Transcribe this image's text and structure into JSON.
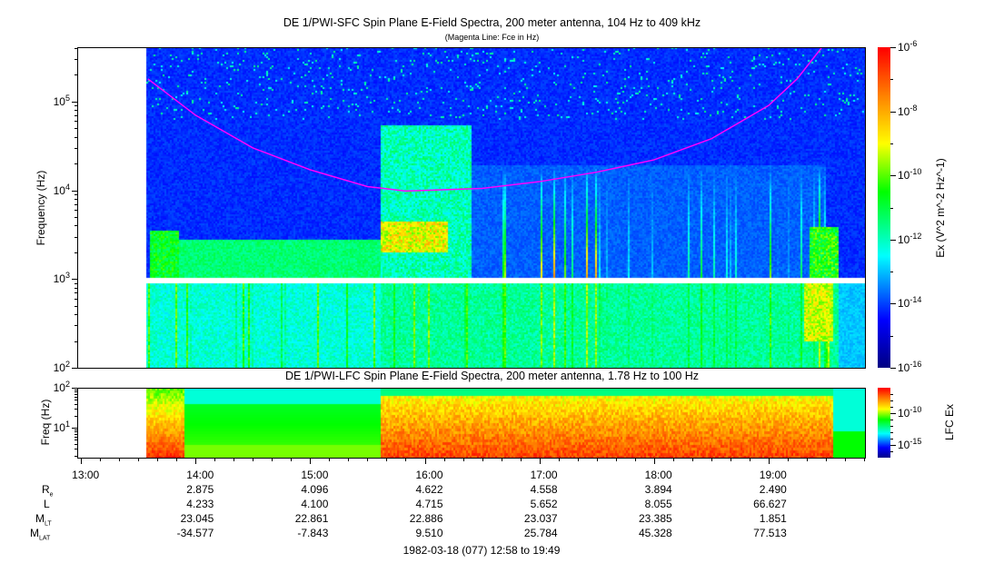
{
  "chart_data": [
    {
      "type": "heatmap",
      "title": "DE 1/PWI-SFC  Spin Plane E-Field Spectra, 200 meter antenna, 104 Hz to 409 kHz",
      "subtitle": "(Magenta Line: Fce in Hz)",
      "ylabel": "Frequency (Hz)",
      "yscale": "log",
      "ylim": [
        100,
        409000
      ],
      "yticks": [
        "10^2",
        "10^3",
        "10^4",
        "10^5"
      ],
      "colorbar": {
        "label": "Ex (V^2 m^-2 Hz^-1)",
        "scale": "log",
        "range": [
          1e-16,
          1e-06
        ],
        "ticks": [
          "10^-6",
          "10^-8",
          "10^-10",
          "10^-12",
          "10^-14",
          "10^-16"
        ],
        "colormap": "rainbow"
      },
      "overlay": {
        "name": "Fce",
        "color": "#ff00ff",
        "x": [
          "13:35",
          "14:00",
          "14:30",
          "15:00",
          "15:30",
          "15:50",
          "16:30",
          "17:00",
          "17:30",
          "18:00",
          "18:30",
          "19:00",
          "19:15",
          "19:28"
        ],
        "y": [
          180000,
          70000,
          30000,
          17000,
          11000,
          9800,
          10500,
          12500,
          16000,
          22000,
          38000,
          90000,
          180000,
          409000
        ]
      }
    },
    {
      "type": "heatmap",
      "title": "DE 1/PWI-LFC  Spin Plane E-Field Spectra, 200 meter antenna, 1.78 Hz to 100 Hz",
      "ylabel": "Freq (Hz)",
      "yscale": "log",
      "ylim": [
        1.78,
        100
      ],
      "yticks": [
        "10^1",
        "10^2"
      ],
      "colorbar": {
        "label": "LFC Ex",
        "scale": "log",
        "ticks": [
          "10^-10",
          "10^-15"
        ],
        "colormap": "rainbow"
      }
    }
  ],
  "xaxis": {
    "ticks": [
      "13:00",
      "14:00",
      "15:00",
      "16:00",
      "17:00",
      "18:00",
      "19:00"
    ],
    "range": [
      "12:58",
      "19:49"
    ]
  },
  "ephemeris": {
    "labels": {
      "re": "R",
      "re_sub": "e",
      "l": "L",
      "mlt": "M",
      "mlt_sub": "LT",
      "mlat": "M",
      "mlat_sub": "LAT"
    },
    "columns": [
      {
        "re": "2.875",
        "l": "4.233",
        "mlt": "23.045",
        "mlat": "-34.577"
      },
      {
        "re": "4.096",
        "l": "4.100",
        "mlt": "22.861",
        "mlat": "-7.843"
      },
      {
        "re": "4.622",
        "l": "4.715",
        "mlt": "22.886",
        "mlat": "9.510"
      },
      {
        "re": "4.558",
        "l": "5.652",
        "mlt": "23.037",
        "mlat": "25.784"
      },
      {
        "re": "3.894",
        "l": "8.055",
        "mlt": "23.385",
        "mlat": "45.328"
      },
      {
        "re": "2.490",
        "l": "66.627",
        "mlt": "1.851",
        "mlat": "77.513"
      }
    ]
  },
  "footer": "1982-03-18 (077) 12:58 to 19:49"
}
